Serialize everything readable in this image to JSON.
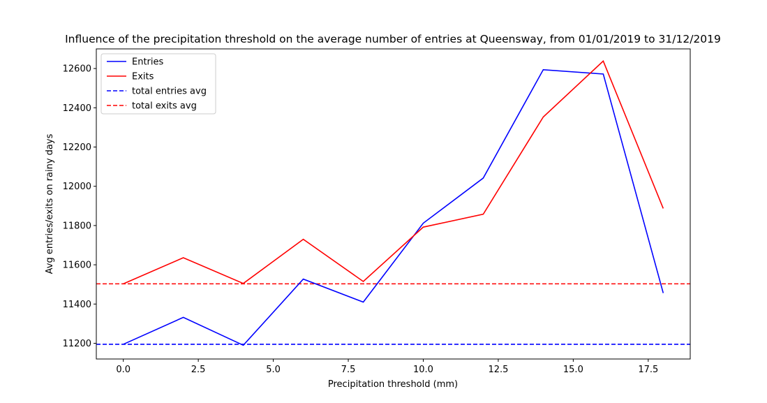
{
  "chart_data": {
    "type": "line",
    "title": "Influence of the precipitation threshold on the average number of entries at Queensway, from 01/01/2019 to 31/12/2019",
    "xlabel": "Precipitation threshold (mm)",
    "ylabel": "Avg entries/exits on rainy days",
    "xlim": [
      -0.9,
      18.9
    ],
    "ylim": [
      11120,
      12700
    ],
    "xticks": [
      0.0,
      2.5,
      5.0,
      7.5,
      10.0,
      12.5,
      15.0,
      17.5
    ],
    "xtick_labels": [
      "0.0",
      "2.5",
      "5.0",
      "7.5",
      "10.0",
      "12.5",
      "15.0",
      "17.5"
    ],
    "yticks": [
      11200,
      11400,
      11600,
      11800,
      12000,
      12200,
      12400,
      12600
    ],
    "ytick_labels": [
      "11200",
      "11400",
      "11600",
      "11800",
      "12000",
      "12200",
      "12400",
      "12600"
    ],
    "x": [
      0,
      2,
      4,
      6,
      8,
      10,
      12,
      14,
      16,
      18
    ],
    "series": [
      {
        "name": "Entries",
        "color": "#0000ff",
        "style": "solid",
        "values": [
          11195,
          11332,
          11190,
          11527,
          11410,
          11812,
          12042,
          12594,
          12572,
          11456
        ]
      },
      {
        "name": "Exits",
        "color": "#ff0000",
        "style": "solid",
        "values": [
          11503,
          11636,
          11505,
          11730,
          11515,
          11792,
          11858,
          12353,
          12638,
          11887
        ]
      }
    ],
    "hlines": [
      {
        "name": "total entries avg",
        "color": "#0000ff",
        "style": "dashed",
        "value": 11195
      },
      {
        "name": "total exits avg",
        "color": "#ff0000",
        "style": "dashed",
        "value": 11503
      }
    ],
    "legend": "top-left",
    "grid": false
  }
}
